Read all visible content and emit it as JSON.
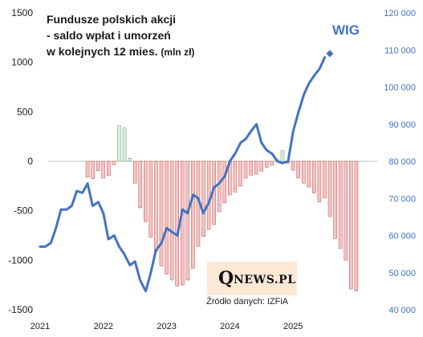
{
  "chart_data": {
    "type": "bar+line",
    "title_lines": [
      "Fundusze polskich akcji",
      "- saldo wpłat i umorzeń",
      "w kolejnych 12 mies."
    ],
    "title_unit": "(mln zł)",
    "left_axis": {
      "ylim": [
        -1500,
        1500
      ],
      "ticks": [
        -1500,
        -1000,
        -500,
        0,
        500,
        1000,
        1500
      ],
      "tick_labels": [
        "-1500",
        "-1000",
        "-500",
        "0",
        "500",
        "1000",
        "1500"
      ]
    },
    "right_axis": {
      "ylim": [
        40000,
        120000
      ],
      "ticks": [
        40000,
        50000,
        60000,
        70000,
        80000,
        90000,
        100000,
        110000,
        120000
      ],
      "tick_labels": [
        "40 000",
        "50 000",
        "60 000",
        "70 000",
        "80 000",
        "90 000",
        "100 000",
        "110 000",
        "120 000"
      ]
    },
    "x_axis": {
      "xlim": [
        2021.0,
        2026.33
      ],
      "ticks": [
        2021,
        2022,
        2023,
        2024,
        2025
      ],
      "tick_labels": [
        "2021",
        "2022",
        "2023",
        "2024",
        "2025"
      ]
    },
    "grid": false,
    "bar_series": {
      "start": 2021.75,
      "step": 0.0833,
      "positive_color": "#d9ecdf",
      "negative_color": "#f4c4c3",
      "values": [
        -160,
        -175,
        -95,
        -170,
        -145,
        -35,
        360,
        340,
        30,
        -220,
        -470,
        -610,
        -770,
        -910,
        -1060,
        -1140,
        -1200,
        -1260,
        -1250,
        -1200,
        -1080,
        -860,
        -760,
        -690,
        -640,
        -510,
        -420,
        -340,
        -310,
        -250,
        -170,
        -140,
        -130,
        -100,
        -60,
        -40,
        20,
        110,
        -20,
        -90,
        -170,
        -220,
        -260,
        -320,
        -410,
        -370,
        -560,
        -780,
        -880,
        -1000,
        -1290,
        -1310
      ]
    },
    "line_series": {
      "name": "WIG",
      "color": "#4472c4",
      "x": [
        2021.0,
        2021.08,
        2021.17,
        2021.25,
        2021.33,
        2021.42,
        2021.5,
        2021.58,
        2021.67,
        2021.75,
        2021.83,
        2021.92,
        2022.0,
        2022.08,
        2022.17,
        2022.25,
        2022.33,
        2022.42,
        2022.5,
        2022.58,
        2022.67,
        2022.75,
        2022.83,
        2022.92,
        2023.0,
        2023.08,
        2023.17,
        2023.25,
        2023.33,
        2023.42,
        2023.5,
        2023.58,
        2023.67,
        2023.75,
        2023.83,
        2023.92,
        2024.0,
        2024.08,
        2024.17,
        2024.25,
        2024.33,
        2024.42,
        2024.5,
        2024.58,
        2024.67,
        2024.75,
        2024.83,
        2024.92,
        2025.0,
        2025.08,
        2025.17,
        2025.25,
        2025.33,
        2025.42,
        2025.5
      ],
      "y": [
        57000,
        57000,
        58000,
        62000,
        67000,
        67000,
        68000,
        72000,
        71500,
        74000,
        68000,
        69000,
        66000,
        59000,
        60000,
        57000,
        55000,
        52000,
        53000,
        48000,
        45000,
        50000,
        56000,
        58000,
        62000,
        61000,
        60000,
        67000,
        66000,
        71000,
        70000,
        66000,
        69000,
        73000,
        74000,
        76000,
        80000,
        82000,
        85000,
        86000,
        88000,
        90000,
        85000,
        83000,
        82000,
        80000,
        79500,
        80000,
        88000,
        93000,
        98000,
        101000,
        103000,
        105000,
        108000
      ],
      "end_marker": {
        "x": 2025.58,
        "y": 109000
      }
    }
  },
  "labels": {
    "wig": "WIG",
    "source": "Źródło danych: IZFiA",
    "logo_q": "Q",
    "logo_rest": "NEWS.PL"
  },
  "colors": {
    "axis_left_text": "#1a1a1a",
    "axis_right_text": "#4472c4",
    "zero_line": "#bfbfbf",
    "bar_stroke_neg": "#c0504d",
    "bar_stroke_pos": "#6aa57a"
  }
}
